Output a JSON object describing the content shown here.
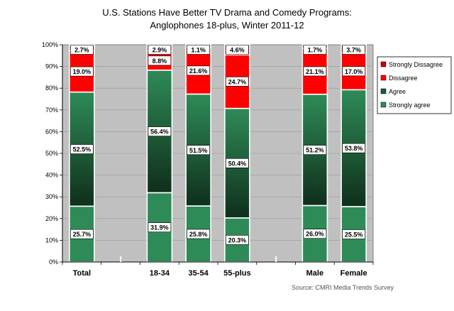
{
  "chart_data": {
    "type": "bar",
    "stacked": true,
    "title": "U.S. Stations Have Better TV Drama and Comedy Programs:",
    "subtitle": "Anglophones 18-plus, Winter 2011-12",
    "source": "Source:  CMRI Media Trends Survey",
    "categories": [
      "Total",
      "",
      "18-34",
      "35-54",
      "55-plus",
      "",
      "Male",
      "Female"
    ],
    "ylim": [
      0,
      100
    ],
    "yticks": [
      "0%",
      "10%",
      "20%",
      "30%",
      "40%",
      "50%",
      "60%",
      "70%",
      "80%",
      "90%",
      "100%"
    ],
    "series": [
      {
        "name": "Strongly agree",
        "color": "#2e8b57",
        "values": [
          25.7,
          null,
          31.9,
          25.8,
          20.3,
          null,
          26.0,
          25.5
        ],
        "labels": [
          "25.7%",
          "",
          "31.9%",
          "25.8%",
          "20.3%",
          "",
          "26.0%",
          "25.5%"
        ]
      },
      {
        "name": "Agree",
        "color": "#1f5c3a",
        "values": [
          52.5,
          null,
          56.4,
          51.5,
          50.4,
          null,
          51.2,
          53.8
        ],
        "labels": [
          "52.5%",
          "",
          "56.4%",
          "51.5%",
          "50.4%",
          "",
          "51.2%",
          "53.8%"
        ]
      },
      {
        "name": "Dissagree",
        "color": "#ff0000",
        "values": [
          19.0,
          null,
          8.8,
          21.6,
          24.7,
          null,
          21.1,
          17.0
        ],
        "labels": [
          "19.0%",
          "",
          "8.8%",
          "21.6%",
          "24.7%",
          "",
          "21.1%",
          "17.0%"
        ]
      },
      {
        "name": "Strongly Dissagree",
        "color": "#cc0000",
        "values": [
          2.7,
          null,
          2.9,
          1.1,
          4.6,
          null,
          1.7,
          3.7
        ],
        "labels": [
          "2.7%",
          "",
          "2.9%",
          "1.1%",
          "4.6%",
          "",
          "1.7%",
          "3.7%"
        ]
      }
    ],
    "legend_order": [
      "Strongly Dissagree",
      "Dissagree",
      "Agree",
      "Strongly agree"
    ],
    "legend_position": "right",
    "plot_background": "#c0c0c0"
  }
}
